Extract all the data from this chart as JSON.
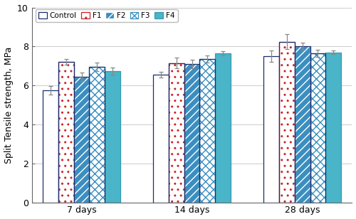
{
  "categories": [
    "7 days",
    "14 days",
    "28 days"
  ],
  "series_names": [
    "Control",
    "F1",
    "F2",
    "F3",
    "F4"
  ],
  "values": [
    [
      5.75,
      7.2,
      6.45,
      6.95,
      6.75
    ],
    [
      6.55,
      7.15,
      7.1,
      7.35,
      7.65
    ],
    [
      7.5,
      8.25,
      8.0,
      7.65,
      7.7
    ]
  ],
  "errors": [
    [
      0.22,
      0.15,
      0.22,
      0.22,
      0.18
    ],
    [
      0.15,
      0.28,
      0.22,
      0.18,
      0.1
    ],
    [
      0.28,
      0.38,
      0.18,
      0.18,
      0.1
    ]
  ],
  "ylim": [
    0,
    10
  ],
  "yticks": [
    0,
    2,
    4,
    6,
    8,
    10
  ],
  "ylabel": "Split Tensile strength, MPa",
  "face_colors": [
    "white",
    "white",
    "#3a8ec0",
    "white",
    "#4ab4c8"
  ],
  "edge_colors": [
    "#1a2e6e",
    "#1a2e6e",
    "#1a2e6e",
    "#1a2e6e",
    "#3a9ab0"
  ],
  "hatch_patterns": [
    null,
    "..",
    "///",
    "xxx",
    null
  ],
  "hatch_colors": [
    "#1a2e6e",
    "#cc2222",
    "#ffffff",
    "#3a8ec0",
    null
  ],
  "bar_width": 0.14,
  "group_positions": [
    0.0,
    1.0,
    2.0
  ],
  "grid_color": "#cccccc",
  "background_color": "#ffffff",
  "error_color": "#888888"
}
